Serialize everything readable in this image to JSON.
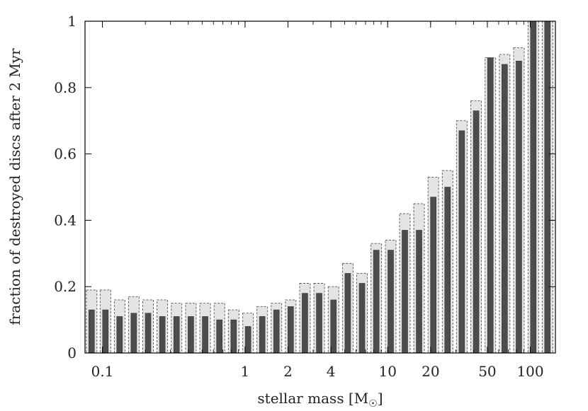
{
  "chart_data": {
    "type": "bar",
    "xscale": "log",
    "xlabel": "stellar mass [M",
    "xlabel_sub": "☉",
    "xlabel_close": "]",
    "ylabel": "fraction of destroyed discs after 2 Myr",
    "ylim": [
      0,
      1
    ],
    "yticks": [
      {
        "value": 0,
        "label": "0"
      },
      {
        "value": 0.2,
        "label": "0.2"
      },
      {
        "value": 0.4,
        "label": "0.4"
      },
      {
        "value": 0.6,
        "label": "0.6"
      },
      {
        "value": 0.8,
        "label": "0.8"
      },
      {
        "value": 1,
        "label": "1"
      }
    ],
    "xticks": [
      {
        "value": 0.1,
        "label": "0.1"
      },
      {
        "value": 1,
        "label": "1"
      },
      {
        "value": 2,
        "label": "2"
      },
      {
        "value": 4,
        "label": "4"
      },
      {
        "value": 10,
        "label": "10"
      },
      {
        "value": 20,
        "label": "20"
      },
      {
        "value": 50,
        "label": "50"
      },
      {
        "value": 100,
        "label": "100"
      }
    ],
    "grid": false,
    "colors": {
      "series_light": "#e4e4e4",
      "series_dark": "#4d4d4d",
      "edge": "#555555"
    },
    "series": [
      {
        "values": [
          0.19,
          0.19,
          0.16,
          0.17,
          0.16,
          0.16,
          0.15,
          0.15,
          0.15,
          0.15,
          0.13,
          0.12,
          0.14,
          0.15,
          0.16,
          0.21,
          0.21,
          0.2,
          0.27,
          0.24,
          0.33,
          0.34,
          0.42,
          0.45,
          0.53,
          0.55,
          0.7,
          0.76,
          0.89,
          0.9,
          0.92,
          1.0,
          1.0
        ]
      },
      {
        "values": [
          0.13,
          0.13,
          0.11,
          0.12,
          0.12,
          0.11,
          0.11,
          0.11,
          0.11,
          0.1,
          0.1,
          0.08,
          0.11,
          0.13,
          0.14,
          0.18,
          0.18,
          0.16,
          0.24,
          0.21,
          0.31,
          0.31,
          0.37,
          0.37,
          0.47,
          0.5,
          0.67,
          0.73,
          0.89,
          0.87,
          0.88,
          1.0,
          1.0
        ]
      }
    ],
    "mass_bins": [
      0.084,
      0.105,
      0.132,
      0.166,
      0.209,
      0.263,
      0.331,
      0.417,
      0.525,
      0.661,
      0.832,
      1.05,
      1.32,
      1.66,
      2.09,
      2.63,
      3.31,
      4.17,
      5.25,
      6.61,
      8.32,
      10.5,
      13.2,
      16.6,
      20.9,
      26.3,
      33.1,
      41.7,
      52.5,
      66.1,
      83.2,
      105,
      132
    ]
  }
}
